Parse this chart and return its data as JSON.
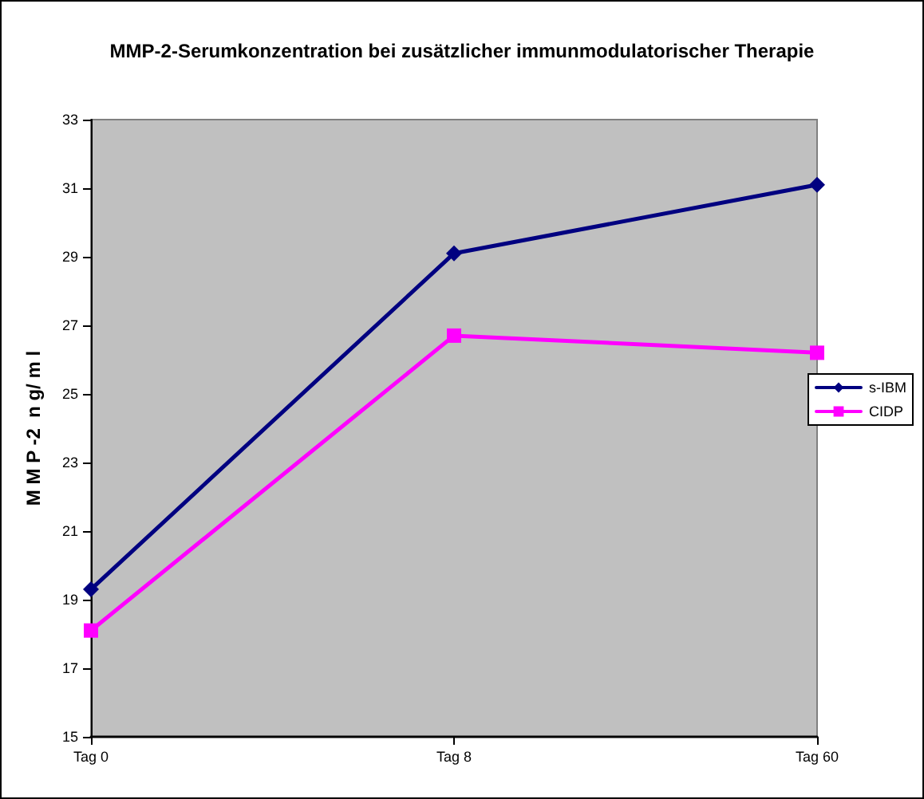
{
  "chart_data": {
    "type": "line",
    "title": "MMP-2-Serumkonzentration bei zusätzlicher immunmodulatorischer Therapie",
    "ylabel": "M M P -2  n g/ m l",
    "categories": [
      "Tag 0",
      "Tag 8",
      "Tag 60"
    ],
    "series": [
      {
        "name": "s-IBM",
        "color": "#000080",
        "marker": "diamond",
        "values": [
          19.3,
          29.1,
          31.1
        ]
      },
      {
        "name": "CIDP",
        "color": "#ff00ff",
        "marker": "square",
        "values": [
          18.1,
          26.7,
          26.2
        ]
      }
    ],
    "ylim": [
      15,
      33
    ],
    "yticks": [
      15,
      17,
      19,
      21,
      23,
      25,
      27,
      29,
      31,
      33
    ],
    "grid": false,
    "legend": "right",
    "line_style": "solid"
  }
}
